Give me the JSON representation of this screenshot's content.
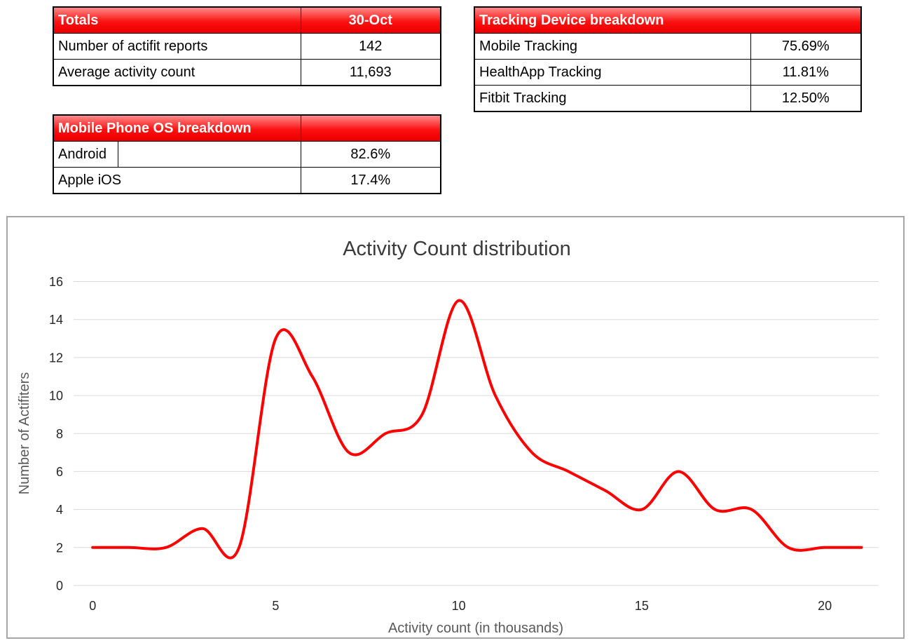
{
  "tables": {
    "totals": {
      "header_title": "Totals",
      "header_value": "30-Oct",
      "rows": [
        {
          "label": "Number of actifit reports",
          "value": "142"
        },
        {
          "label": "Average activity count",
          "value": "11,693"
        }
      ]
    },
    "os": {
      "header_title": "Mobile Phone OS breakdown",
      "header_value": "",
      "rows": [
        {
          "label": "Android",
          "value": "82.6%"
        },
        {
          "label": "Apple iOS",
          "value": "17.4%"
        }
      ]
    },
    "tracking": {
      "header_title": "Tracking Device breakdown",
      "rows": [
        {
          "label": "Mobile Tracking",
          "value": "75.69%"
        },
        {
          "label": "HealthApp Tracking",
          "value": "11.81%"
        },
        {
          "label": "Fitbit Tracking",
          "value": "12.50%"
        }
      ]
    }
  },
  "chart_data": {
    "type": "line",
    "title": "Activity Count distribution",
    "xlabel": "Activity count (in thousands)",
    "ylabel": "Number of Actifiters",
    "x": [
      0,
      1,
      2,
      3,
      4,
      5,
      6,
      7,
      8,
      9,
      10,
      11,
      12,
      13,
      14,
      15,
      16,
      17,
      18,
      19,
      20,
      21
    ],
    "series": [
      {
        "name": "Number of Actifiters",
        "values": [
          2,
          2,
          2,
          3,
          2,
          13,
          11,
          7,
          8,
          9,
          15,
          10,
          7,
          6,
          5,
          4,
          6,
          4,
          4,
          2,
          2,
          2
        ]
      }
    ],
    "xticks": [
      0,
      5,
      10,
      15,
      20
    ],
    "yticks": [
      0,
      2,
      4,
      6,
      8,
      10,
      12,
      14,
      16
    ],
    "xlim": [
      -0.52,
      21.47
    ],
    "ylim": [
      0,
      16
    ],
    "grid": true,
    "legend": false,
    "smooth": true,
    "line_color": "#ff0000"
  },
  "colors": {
    "header_red_top": "#ff8a8a",
    "header_red": "#f40404",
    "table_border": "#000000",
    "chart_border": "#a6a6a6",
    "gridline": "#d9d9d9",
    "series_red": "#ff0000",
    "tick_text": "#262626",
    "axis_title_text": "#595959"
  }
}
